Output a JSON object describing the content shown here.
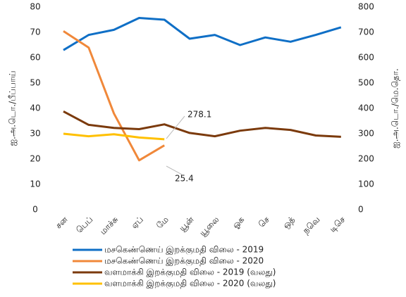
{
  "chart_data": {
    "type": "line",
    "categories": [
      "சன",
      "பெப்",
      "மாச்சு",
      "ஏப்",
      "மே",
      "யூன்",
      "யூலை",
      "ஓக",
      "செ",
      "ஒத்",
      "நவெ",
      "டிசெ"
    ],
    "y_label": "ஐ.அ.டொ./பீப்பாய்",
    "y2_label": "ஐ.அ.டொ./மெ.தொ.",
    "ylim": [
      0,
      80
    ],
    "yticks": [
      0,
      10,
      20,
      30,
      40,
      50,
      60,
      70,
      80
    ],
    "y2lim": [
      0,
      800
    ],
    "y2ticks": [
      0,
      100,
      200,
      300,
      400,
      500,
      600,
      700,
      800
    ],
    "series": [
      {
        "name": "மசகெண்ணெய் இறக்குமதி விலை - 2019",
        "color": "#0f6fc6",
        "values": [
          63,
          69,
          71,
          75.7,
          75,
          67.5,
          69,
          65,
          68,
          66.3,
          69,
          72
        ]
      },
      {
        "name": "மசகெண்ணெய் இறக்குமதி விலை - 2020",
        "color": "#f0883a",
        "values": [
          70.5,
          64,
          38,
          19.5,
          25.4,
          null,
          null,
          null,
          null,
          null,
          null,
          null
        ]
      },
      {
        "name": "வளமாக்கி இறக்குமதி விலை - 2019 (வலது)",
        "color": "#7b3a0c",
        "axis": "y2",
        "values": [
          388,
          335,
          323,
          318,
          337,
          303,
          290,
          312,
          323,
          315,
          293,
          288
        ]
      },
      {
        "name": "வளமாக்கி இறக்குமதி விலை - 2020 (வலது)",
        "color": "#ffc000",
        "axis": "y2",
        "values": [
          300,
          290,
          298,
          285,
          278.1,
          null,
          null,
          null,
          null,
          null,
          null,
          null
        ]
      }
    ],
    "annotations": [
      "278.1",
      "25.4"
    ]
  }
}
